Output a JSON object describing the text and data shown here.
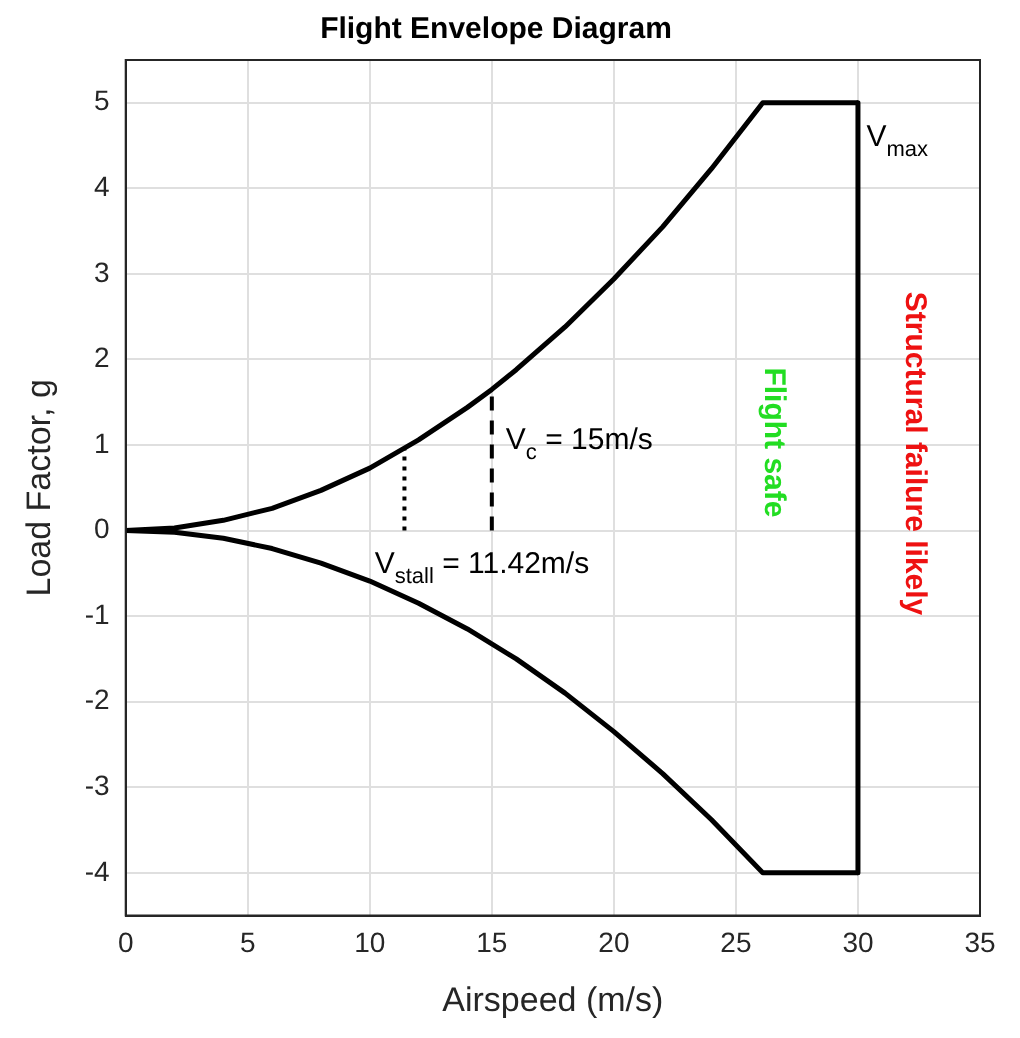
{
  "chart_data": {
    "type": "line",
    "title": "Flight Envelope Diagram",
    "xlabel": "Airspeed (m/s)",
    "ylabel": "Load Factor, g",
    "xlim": [
      0,
      35
    ],
    "xticks": [
      0,
      5,
      10,
      15,
      20,
      25,
      30,
      35
    ],
    "ylim": [
      -4.5,
      5.5
    ],
    "yticks": [
      -4,
      -3,
      -2,
      -1,
      0,
      1,
      2,
      3,
      4,
      5
    ],
    "grid": true,
    "legend": false,
    "series": [
      {
        "color": "#000000",
        "line_style": "solid",
        "x": [
          0,
          2,
          4,
          6,
          8,
          10,
          12,
          14,
          15,
          16,
          18,
          20,
          22,
          24,
          26.1,
          30
        ],
        "values": [
          0,
          0.03,
          0.12,
          0.26,
          0.47,
          0.73,
          1.06,
          1.44,
          1.65,
          1.88,
          2.38,
          2.94,
          3.55,
          4.23,
          5,
          5
        ]
      },
      {
        "color": "#000000",
        "line_style": "solid",
        "x": [
          0,
          2,
          4,
          6,
          8,
          10,
          12,
          14,
          16,
          18,
          20,
          22,
          24,
          26.1,
          30
        ],
        "values": [
          0,
          -0.02,
          -0.09,
          -0.21,
          -0.38,
          -0.59,
          -0.85,
          -1.15,
          -1.5,
          -1.9,
          -2.35,
          -2.84,
          -3.38,
          -4,
          -4
        ]
      },
      {
        "color": "#000000",
        "line_style": "solid",
        "x": [
          30,
          30
        ],
        "values": [
          5,
          -4
        ]
      },
      {
        "color": "#000000",
        "line_style": "dotted",
        "x": [
          11.42,
          11.42
        ],
        "values": [
          0,
          0.96
        ]
      },
      {
        "color": "#000000",
        "line_style": "dashed",
        "x": [
          15,
          15
        ],
        "values": [
          0,
          1.65
        ]
      }
    ],
    "annotations": [
      {
        "text": "V$_{stall}$ = 11.42m/s",
        "x": 10.2,
        "y": -0.5
      },
      "V$_{c}$ = 15m/s",
      "V$_{max}$",
      "Flight safe",
      "Structural failure likely"
    ]
  }
}
